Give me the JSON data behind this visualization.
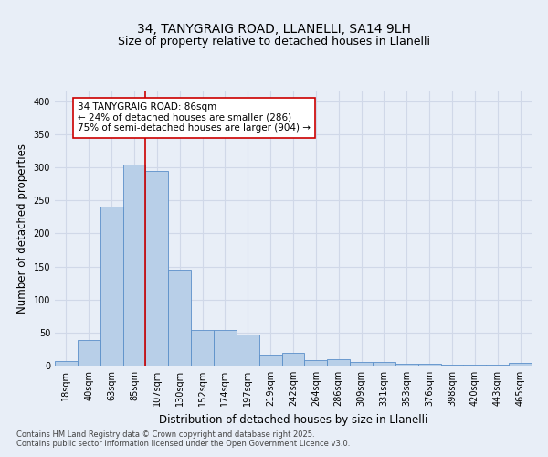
{
  "title_line1": "34, TANYGRAIG ROAD, LLANELLI, SA14 9LH",
  "title_line2": "Size of property relative to detached houses in Llanelli",
  "xlabel": "Distribution of detached houses by size in Llanelli",
  "ylabel": "Number of detached properties",
  "bar_labels": [
    "18sqm",
    "40sqm",
    "63sqm",
    "85sqm",
    "107sqm",
    "130sqm",
    "152sqm",
    "174sqm",
    "197sqm",
    "219sqm",
    "242sqm",
    "264sqm",
    "286sqm",
    "309sqm",
    "331sqm",
    "353sqm",
    "376sqm",
    "398sqm",
    "420sqm",
    "443sqm",
    "465sqm"
  ],
  "bar_values": [
    7,
    39,
    241,
    305,
    295,
    145,
    54,
    54,
    47,
    17,
    19,
    8,
    10,
    5,
    5,
    3,
    3,
    1,
    1,
    1,
    4
  ],
  "bar_color": "#b8cfe8",
  "bar_edge_color": "#5b8fc9",
  "annotation_box_text": "34 TANYGRAIG ROAD: 86sqm\n← 24% of detached houses are smaller (286)\n75% of semi-detached houses are larger (904) →",
  "vline_after_index": 3,
  "vline_color": "#cc0000",
  "annotation_box_facecolor": "#ffffff",
  "annotation_box_edgecolor": "#cc0000",
  "ylim": [
    0,
    415
  ],
  "yticks": [
    0,
    50,
    100,
    150,
    200,
    250,
    300,
    350,
    400
  ],
  "background_color": "#e8eef7",
  "plot_bg_color": "#e8eef7",
  "footer_text": "Contains HM Land Registry data © Crown copyright and database right 2025.\nContains public sector information licensed under the Open Government Licence v3.0.",
  "grid_color": "#d0d8e8",
  "title_fontsize": 10,
  "subtitle_fontsize": 9,
  "axis_label_fontsize": 8.5,
  "tick_fontsize": 7,
  "annotation_fontsize": 7.5,
  "footer_fontsize": 6
}
